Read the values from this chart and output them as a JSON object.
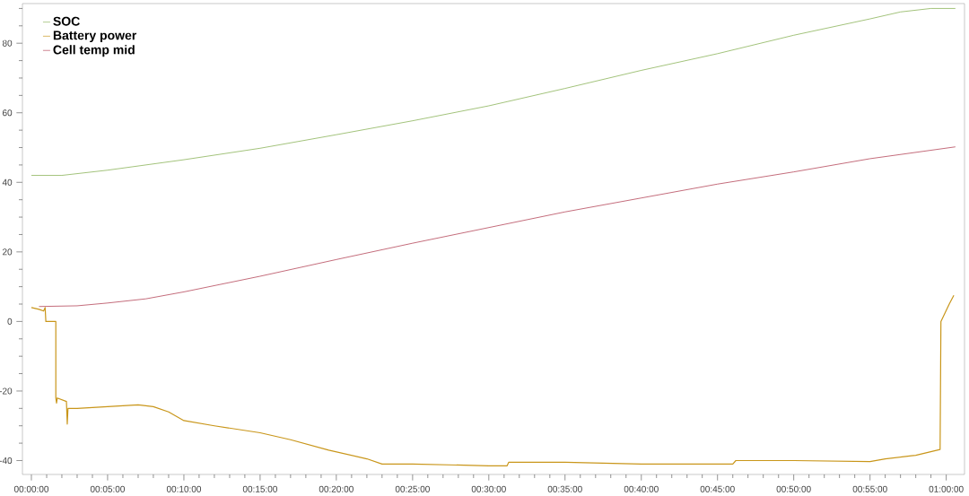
{
  "chart_data": {
    "type": "line",
    "legend": "top left",
    "marker": "none",
    "line_style": "solid",
    "xlim": [
      -0.0098,
      1.02
    ],
    "ylim": [
      -44,
      91.4
    ],
    "xticks": [
      {
        "value": 0,
        "label": "00:00:00"
      },
      {
        "value": 0.0167,
        "label": null
      },
      {
        "value": 0.0333,
        "label": null
      },
      {
        "value": 0.05,
        "label": null
      },
      {
        "value": 0.0667,
        "label": null
      },
      {
        "value": 0.0833,
        "label": "00:05:00"
      },
      {
        "value": 0.1,
        "label": null
      },
      {
        "value": 0.1167,
        "label": null
      },
      {
        "value": 0.1333,
        "label": null
      },
      {
        "value": 0.15,
        "label": null
      },
      {
        "value": 0.1667,
        "label": "00:10:00"
      },
      {
        "value": 0.1833,
        "label": null
      },
      {
        "value": 0.2,
        "label": null
      },
      {
        "value": 0.2167,
        "label": null
      },
      {
        "value": 0.2333,
        "label": null
      },
      {
        "value": 0.25,
        "label": "00:15:00"
      },
      {
        "value": 0.2667,
        "label": null
      },
      {
        "value": 0.2833,
        "label": null
      },
      {
        "value": 0.3,
        "label": null
      },
      {
        "value": 0.3167,
        "label": null
      },
      {
        "value": 0.3333,
        "label": "00:20:00"
      },
      {
        "value": 0.35,
        "label": null
      },
      {
        "value": 0.3667,
        "label": null
      },
      {
        "value": 0.3833,
        "label": null
      },
      {
        "value": 0.4,
        "label": null
      },
      {
        "value": 0.4167,
        "label": "00:25:00"
      },
      {
        "value": 0.4333,
        "label": null
      },
      {
        "value": 0.45,
        "label": null
      },
      {
        "value": 0.4667,
        "label": null
      },
      {
        "value": 0.4833,
        "label": null
      },
      {
        "value": 0.5,
        "label": "00:30:00"
      },
      {
        "value": 0.5167,
        "label": null
      },
      {
        "value": 0.5333,
        "label": null
      },
      {
        "value": 0.55,
        "label": null
      },
      {
        "value": 0.5667,
        "label": null
      },
      {
        "value": 0.5833,
        "label": "00:35:00"
      },
      {
        "value": 0.6,
        "label": null
      },
      {
        "value": 0.6167,
        "label": null
      },
      {
        "value": 0.6333,
        "label": null
      },
      {
        "value": 0.65,
        "label": null
      },
      {
        "value": 0.6667,
        "label": "00:40:00"
      },
      {
        "value": 0.6833,
        "label": null
      },
      {
        "value": 0.7,
        "label": null
      },
      {
        "value": 0.7167,
        "label": null
      },
      {
        "value": 0.7333,
        "label": null
      },
      {
        "value": 0.75,
        "label": "00:45:00"
      },
      {
        "value": 0.7667,
        "label": null
      },
      {
        "value": 0.7833,
        "label": null
      },
      {
        "value": 0.8,
        "label": null
      },
      {
        "value": 0.8167,
        "label": null
      },
      {
        "value": 0.8333,
        "label": "00:50:00"
      },
      {
        "value": 0.85,
        "label": null
      },
      {
        "value": 0.8667,
        "label": null
      },
      {
        "value": 0.8833,
        "label": null
      },
      {
        "value": 0.9,
        "label": null
      },
      {
        "value": 0.9167,
        "label": "00:55:00"
      },
      {
        "value": 0.9333,
        "label": null
      },
      {
        "value": 0.95,
        "label": null
      },
      {
        "value": 0.9667,
        "label": null
      },
      {
        "value": 0.9833,
        "label": null
      },
      {
        "value": 1,
        "label": "01:00:00"
      }
    ],
    "yticks": [
      -40,
      {
        "value": -35,
        "label": null
      },
      {
        "value": -30,
        "label": null
      },
      {
        "value": -25,
        "label": null
      },
      -20,
      {
        "value": -15,
        "label": null
      },
      {
        "value": -10,
        "label": null
      },
      {
        "value": -5,
        "label": null
      },
      0,
      {
        "value": 5,
        "label": null
      },
      {
        "value": 10,
        "label": null
      },
      {
        "value": 15,
        "label": null
      },
      20,
      {
        "value": 25,
        "label": null
      },
      {
        "value": 30,
        "label": null
      },
      {
        "value": 35,
        "label": null
      },
      40,
      {
        "value": 45,
        "label": null
      },
      {
        "value": 50,
        "label": null
      },
      {
        "value": 55,
        "label": null
      },
      60,
      {
        "value": 65,
        "label": null
      },
      {
        "value": 70,
        "label": null
      },
      {
        "value": 75,
        "label": null
      },
      80,
      {
        "value": 85,
        "label": null
      },
      {
        "value": 90,
        "label": null
      }
    ],
    "series": [
      {
        "name": "SOC",
        "color": "#8cb45a",
        "x": [
          0,
          0.0333,
          0.0833,
          0.1667,
          0.25,
          0.3333,
          0.4167,
          0.5,
          0.5833,
          0.6667,
          0.75,
          0.8333,
          0.9167,
          0.95,
          0.9833,
          1.01
        ],
        "values": [
          42,
          42,
          43.5,
          46.5,
          49.8,
          53.7,
          57.7,
          62,
          67,
          72.2,
          77,
          82.3,
          87,
          89,
          90,
          90
        ]
      },
      {
        "name": "Battery power",
        "color": "#c9961a",
        "x": [
          0,
          0.0083,
          0.0133,
          0.015,
          0.0158,
          0.0267,
          0.0267,
          0.0275,
          0.0283,
          0.0333,
          0.0383,
          0.0392,
          0.04,
          0.05,
          0.0833,
          0.1167,
          0.1333,
          0.15,
          0.1667,
          0.2,
          0.25,
          0.2833,
          0.325,
          0.3667,
          0.3833,
          0.4167,
          0.5,
          0.52,
          0.5217,
          0.5833,
          0.6667,
          0.7667,
          0.77,
          0.8333,
          0.9167,
          0.9333,
          0.9667,
          0.9933,
          0.9942,
          1.0033,
          1.0083
        ],
        "values": [
          4,
          3.5,
          3,
          4,
          0,
          0,
          -22,
          -23.5,
          -22,
          -22.5,
          -23,
          -29.5,
          -25,
          -25,
          -24.5,
          -24,
          -24.5,
          -26,
          -28.5,
          -30,
          -32,
          -34,
          -37,
          -39.5,
          -41,
          -41,
          -41.5,
          -41.5,
          -40.5,
          -40.5,
          -41,
          -41,
          -40,
          -40,
          -40.3,
          -39.5,
          -38.5,
          -36.8,
          0,
          5,
          7.5
        ]
      },
      {
        "name": "Cell temp mid",
        "color": "#b5475a",
        "x": [
          0.0083,
          0.05,
          0.0833,
          0.125,
          0.1667,
          0.25,
          0.3333,
          0.4167,
          0.5,
          0.5833,
          0.6667,
          0.75,
          0.8333,
          0.9167,
          1.01
        ],
        "values": [
          4.3,
          4.5,
          5.3,
          6.5,
          8.5,
          13,
          17.8,
          22.5,
          27,
          31.5,
          35.5,
          39.5,
          43,
          46.8,
          50.2
        ]
      }
    ]
  }
}
